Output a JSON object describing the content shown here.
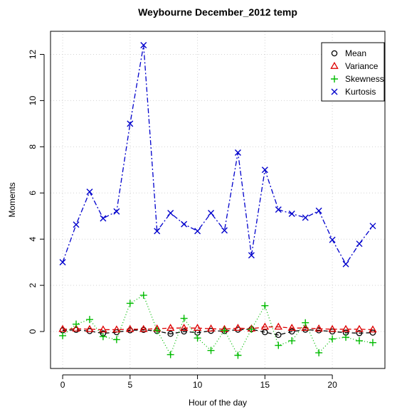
{
  "chart_data": {
    "type": "line",
    "title": "Weybourne December_2012 temp",
    "xlabel": "Hour of the day",
    "ylabel": "Moments",
    "xlim": [
      -0.9,
      23.9
    ],
    "ylim": [
      -1.6,
      13.0
    ],
    "x_ticks": [
      0,
      5,
      10,
      15,
      20
    ],
    "y_ticks": [
      0,
      2,
      4,
      6,
      8,
      10,
      12
    ],
    "grid": true,
    "legend_position": "top-right",
    "x": [
      0,
      1,
      2,
      3,
      4,
      5,
      6,
      7,
      8,
      9,
      10,
      11,
      12,
      13,
      14,
      15,
      16,
      17,
      18,
      19,
      20,
      21,
      22,
      23
    ],
    "series": [
      {
        "name": "Mean",
        "color": "#000000",
        "marker": "circle",
        "line_style": "dashed",
        "values": [
          0.05,
          0.07,
          0.02,
          -0.08,
          -0.03,
          0.05,
          0.07,
          0.02,
          -0.1,
          0.0,
          -0.05,
          0.03,
          0.02,
          0.08,
          0.1,
          -0.03,
          -0.15,
          0.0,
          0.08,
          0.05,
          0.0,
          -0.05,
          -0.07,
          -0.05
        ]
      },
      {
        "name": "Variance",
        "color": "#dd0000",
        "marker": "triangle",
        "line_style": "dashed",
        "values": [
          0.1,
          0.12,
          0.1,
          0.08,
          0.08,
          0.1,
          0.1,
          0.12,
          0.15,
          0.15,
          0.15,
          0.12,
          0.1,
          0.15,
          0.12,
          0.2,
          0.2,
          0.15,
          0.15,
          0.12,
          0.1,
          0.1,
          0.1,
          0.08
        ]
      },
      {
        "name": "Skewness",
        "color": "#00bb00",
        "marker": "plus",
        "line_style": "dotted",
        "values": [
          -0.18,
          0.32,
          0.52,
          -0.22,
          -0.35,
          1.22,
          1.57,
          0.05,
          -1.0,
          0.57,
          -0.28,
          -0.82,
          0.05,
          -1.03,
          0.1,
          1.12,
          -0.6,
          -0.4,
          0.38,
          -0.92,
          -0.32,
          -0.25,
          -0.4,
          -0.48
        ]
      },
      {
        "name": "Kurtosis",
        "color": "#0000cc",
        "marker": "cross",
        "line_style": "dashdot",
        "values": [
          3.0,
          4.63,
          6.05,
          4.9,
          5.2,
          9.0,
          12.4,
          4.35,
          5.13,
          4.65,
          4.35,
          5.13,
          4.38,
          7.75,
          3.3,
          7.0,
          5.28,
          5.1,
          4.93,
          5.23,
          3.97,
          2.92,
          3.8,
          4.57
        ]
      }
    ]
  }
}
